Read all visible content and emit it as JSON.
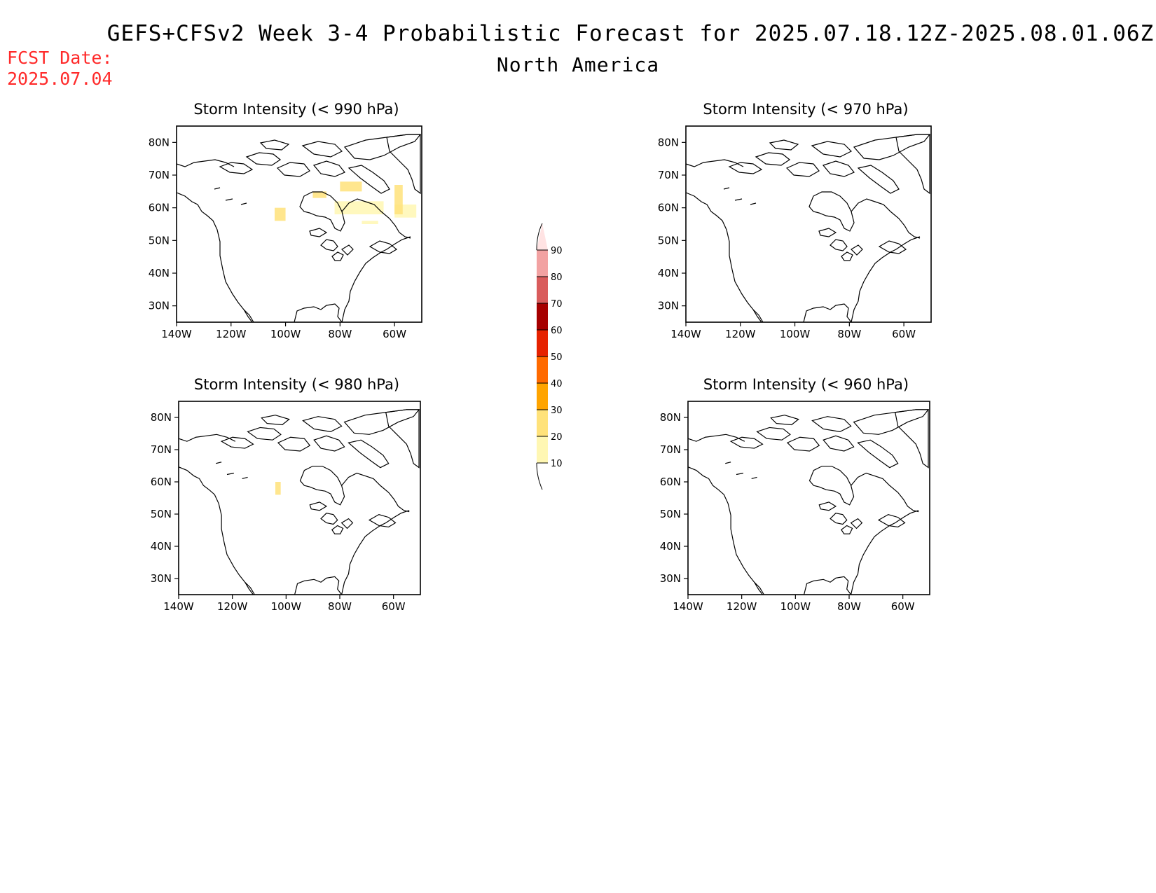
{
  "header": {
    "title": "GEFS+CFSv2 Week 3-4 Probabilistic Forecast for 2025.07.18.12Z-2025.08.01.06Z",
    "subtitle": "North America",
    "fcst_label": "FCST Date:",
    "fcst_date": "2025.07.04"
  },
  "panels": [
    {
      "title": "Storm Intensity (< 990 hPa)",
      "shaded_regions": [
        {
          "lon": [
            -104,
            -100
          ],
          "lat": [
            56,
            60
          ],
          "prob": 20
        },
        {
          "lon": [
            -90,
            -85
          ],
          "lat": [
            63,
            65
          ],
          "prob": 20
        },
        {
          "lon": [
            -80,
            -72
          ],
          "lat": [
            65,
            68
          ],
          "prob": 20
        },
        {
          "lon": [
            -82,
            -64
          ],
          "lat": [
            58,
            62
          ],
          "prob": 10
        },
        {
          "lon": [
            -72,
            -66
          ],
          "lat": [
            55,
            56
          ],
          "prob": 10
        },
        {
          "lon": [
            -60,
            -52
          ],
          "lat": [
            57,
            61
          ],
          "prob": 10
        },
        {
          "lon": [
            -60,
            -57
          ],
          "lat": [
            58,
            67
          ],
          "prob": 20
        }
      ]
    },
    {
      "title": "Storm Intensity (< 970 hPa)",
      "shaded_regions": []
    },
    {
      "title": "Storm Intensity (< 980 hPa)",
      "shaded_regions": [
        {
          "lon": [
            -104,
            -102
          ],
          "lat": [
            56,
            60
          ],
          "prob": 20
        }
      ]
    },
    {
      "title": "Storm Intensity (< 960 hPa)",
      "shaded_regions": []
    }
  ],
  "axes": {
    "lon_ticks": [
      "140W",
      "120W",
      "100W",
      "80W",
      "60W"
    ],
    "lat_ticks": [
      "80N",
      "70N",
      "60N",
      "50N",
      "40N",
      "30N"
    ],
    "lon_range": [
      -140,
      -50
    ],
    "lat_range": [
      25,
      85
    ]
  },
  "colorbar": {
    "levels": [
      "10",
      "20",
      "30",
      "40",
      "50",
      "60",
      "70",
      "80",
      "90"
    ],
    "colors": [
      "#fff7b3",
      "#ffe27a",
      "#ffa400",
      "#ff6a00",
      "#e62200",
      "#a60000",
      "#d95c5c",
      "#f2a2a2",
      "#ffe3e3"
    ]
  }
}
